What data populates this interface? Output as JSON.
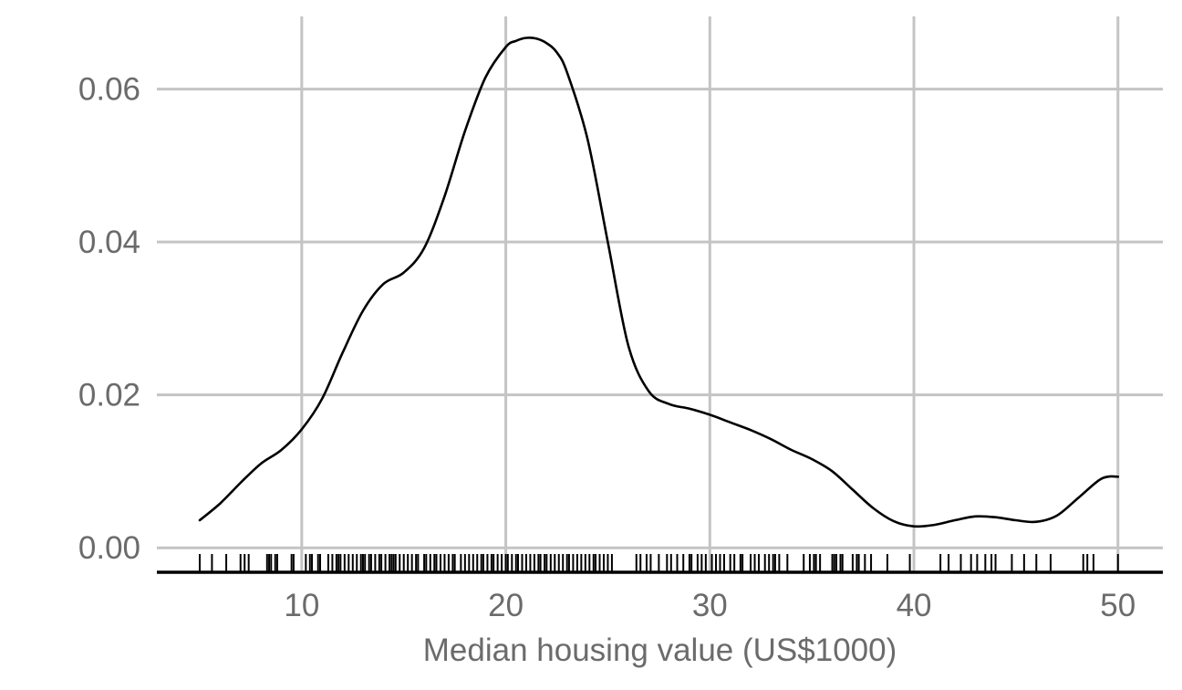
{
  "chart_data": {
    "type": "line",
    "title": "",
    "xlabel": "Median housing value (US$1000)",
    "ylabel": "",
    "xlim": [
      2.9,
      52.2
    ],
    "ylim": [
      -0.0032,
      0.0695
    ],
    "x_ticks": [
      10,
      20,
      30,
      40,
      50
    ],
    "x_tick_labels": [
      "10",
      "20",
      "30",
      "40",
      "50"
    ],
    "y_ticks": [
      0.0,
      0.02,
      0.04,
      0.06
    ],
    "y_tick_labels": [
      "0.00",
      "0.02",
      "0.04",
      "0.06"
    ],
    "grid": true,
    "legend": "none",
    "series": [
      {
        "x": [
          5,
          6,
          7,
          8,
          9,
          10,
          11,
          12,
          13,
          14,
          15,
          16,
          17,
          18,
          19,
          20,
          20.5,
          21,
          21.5,
          22,
          22.5,
          23,
          24,
          25,
          26,
          27,
          28,
          29,
          30,
          31,
          32,
          33,
          34,
          35,
          36,
          37,
          38,
          39,
          40,
          41,
          42,
          43,
          44,
          45,
          46,
          47,
          48,
          49,
          49.5,
          50
        ],
        "y": [
          0.0036,
          0.0058,
          0.0085,
          0.011,
          0.0128,
          0.0155,
          0.0195,
          0.0255,
          0.031,
          0.0345,
          0.036,
          0.0392,
          0.046,
          0.0545,
          0.0615,
          0.0655,
          0.0663,
          0.0667,
          0.0666,
          0.066,
          0.0648,
          0.0622,
          0.0535,
          0.04,
          0.0265,
          0.0205,
          0.0188,
          0.0182,
          0.0174,
          0.0164,
          0.0154,
          0.0142,
          0.0128,
          0.0116,
          0.01,
          0.0076,
          0.0052,
          0.0035,
          0.0028,
          0.003,
          0.0036,
          0.0041,
          0.004,
          0.0036,
          0.0034,
          0.0042,
          0.0064,
          0.0087,
          0.0093,
          0.0093
        ]
      }
    ],
    "rug_x": [
      5.0,
      5.6,
      6.3,
      7.0,
      7.2,
      7.4,
      8.3,
      8.4,
      8.5,
      8.7,
      8.8,
      9.5,
      9.6,
      10.2,
      10.4,
      10.5,
      10.8,
      10.9,
      11.3,
      11.5,
      11.7,
      11.8,
      11.9,
      12.1,
      12.3,
      12.5,
      12.7,
      12.9,
      13.0,
      13.1,
      13.3,
      13.4,
      13.6,
      13.8,
      13.9,
      14.1,
      14.3,
      14.4,
      14.5,
      14.6,
      14.8,
      15.0,
      15.2,
      15.4,
      15.6,
      15.7,
      16.0,
      16.1,
      16.3,
      16.5,
      16.6,
      16.8,
      17.0,
      17.2,
      17.4,
      17.5,
      17.8,
      18.0,
      18.2,
      18.4,
      18.6,
      18.8,
      18.9,
      19.1,
      19.3,
      19.4,
      19.6,
      19.8,
      20.0,
      20.1,
      20.3,
      20.5,
      20.6,
      20.8,
      21.0,
      21.2,
      21.4,
      21.6,
      21.7,
      21.9,
      22.0,
      22.2,
      22.4,
      22.6,
      22.8,
      23.0,
      23.1,
      23.3,
      23.5,
      23.7,
      23.9,
      24.1,
      24.3,
      24.4,
      24.6,
      24.8,
      25.0,
      25.2,
      26.4,
      26.6,
      26.9,
      27.1,
      27.5,
      27.9,
      28.1,
      28.4,
      28.7,
      29.0,
      29.1,
      29.4,
      29.6,
      29.8,
      30.1,
      30.3,
      30.5,
      30.7,
      31.0,
      31.2,
      31.5,
      31.6,
      32.0,
      32.2,
      32.4,
      32.7,
      32.9,
      33.1,
      33.2,
      33.4,
      33.8,
      34.6,
      34.9,
      35.1,
      35.2,
      35.4,
      36.0,
      36.1,
      36.2,
      36.4,
      36.5,
      37.0,
      37.2,
      37.3,
      37.6,
      37.9,
      38.7,
      39.8,
      41.3,
      41.7,
      42.3,
      42.8,
      43.1,
      43.5,
      43.8,
      44.0,
      44.8,
      45.4,
      46.0,
      46.7,
      48.3,
      48.5,
      48.8,
      50.0
    ]
  }
}
